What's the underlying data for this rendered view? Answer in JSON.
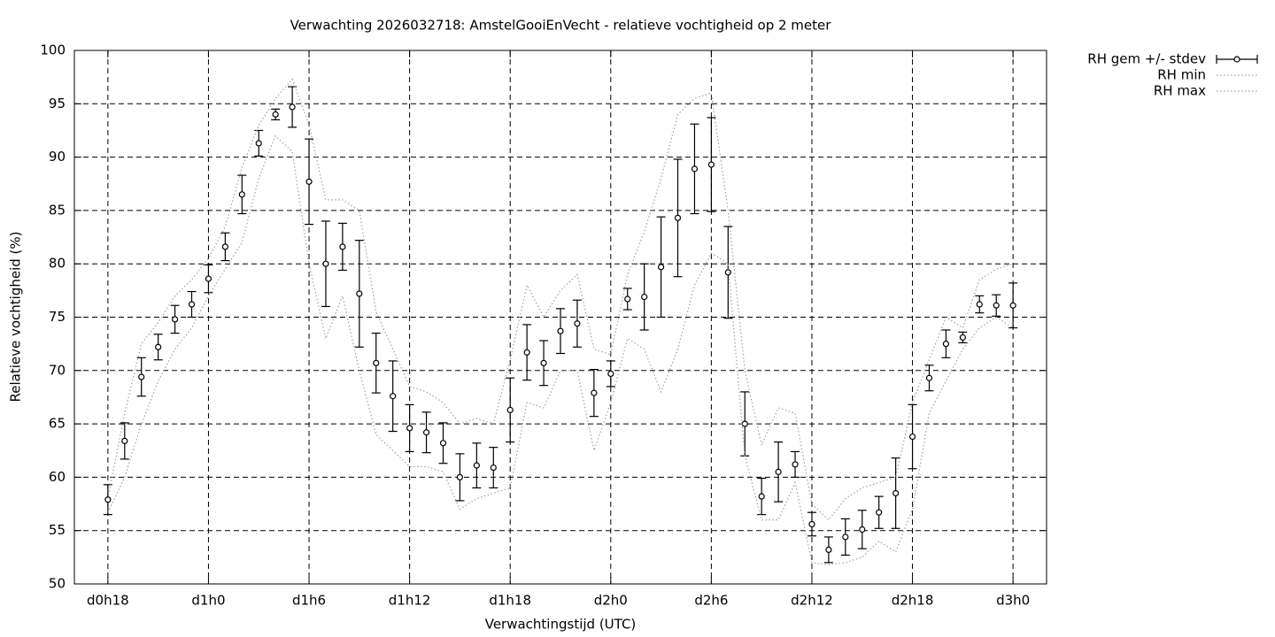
{
  "chart_data": {
    "type": "errorbar",
    "title": "Verwachting 2026032718: AmstelGooiEnVecht - relatieve vochtigheid op 2 meter",
    "xlabel": "Verwachtingstijd (UTC)",
    "ylabel": "Relatieve vochtigheid (%)",
    "x": [
      18,
      19,
      20,
      21,
      22,
      23,
      24,
      25,
      26,
      27,
      28,
      29,
      30,
      31,
      32,
      33,
      34,
      35,
      36,
      37,
      38,
      39,
      40,
      41,
      42,
      43,
      44,
      45,
      46,
      47,
      48,
      49,
      50,
      51,
      52,
      53,
      54,
      55,
      56,
      57,
      58,
      59,
      60,
      61,
      62,
      63,
      64,
      65,
      66,
      67,
      68,
      69,
      70,
      71,
      72
    ],
    "series": [
      {
        "name": "RH gem +/- stdev",
        "color": "#000000",
        "values": [
          57.9,
          63.4,
          69.4,
          72.2,
          74.8,
          76.2,
          78.6,
          81.6,
          86.5,
          91.3,
          94.0,
          94.7,
          87.7,
          80.0,
          81.6,
          77.2,
          70.7,
          67.6,
          64.6,
          64.2,
          63.2,
          60.0,
          61.1,
          60.9,
          66.3,
          71.7,
          70.7,
          73.7,
          74.4,
          67.9,
          69.7,
          76.7,
          76.9,
          79.7,
          84.3,
          88.9,
          89.3,
          79.2,
          65.0,
          58.2,
          60.5,
          61.2,
          55.6,
          53.2,
          54.4,
          55.1,
          56.7,
          58.5,
          63.8,
          69.3,
          72.5,
          73.1,
          76.2,
          76.1,
          76.1
        ],
        "errors": [
          1.4,
          1.7,
          1.8,
          1.2,
          1.3,
          1.2,
          1.3,
          1.3,
          1.8,
          1.2,
          0.5,
          1.9,
          4.0,
          4.0,
          2.2,
          5.0,
          2.8,
          3.3,
          2.2,
          1.9,
          1.9,
          2.2,
          2.1,
          1.9,
          3.0,
          2.6,
          2.1,
          2.1,
          2.2,
          2.2,
          1.2,
          1.0,
          3.1,
          4.7,
          5.5,
          4.2,
          4.4,
          4.3,
          3.0,
          1.7,
          2.8,
          1.2,
          1.1,
          1.2,
          1.7,
          1.8,
          1.5,
          3.3,
          3.0,
          1.2,
          1.3,
          0.5,
          0.8,
          1.0,
          2.1
        ]
      },
      {
        "name": "RH min",
        "color": "#a0a0a0",
        "values": [
          56.7,
          60,
          65,
          69,
          72,
          74,
          77,
          79.5,
          82,
          88,
          92,
          90.5,
          80,
          73,
          77,
          70,
          64,
          62.5,
          61,
          61,
          60.5,
          57,
          58,
          58.5,
          59,
          67,
          66.5,
          70,
          70,
          62.5,
          67,
          73,
          72,
          68,
          72,
          78,
          81,
          80,
          62,
          56,
          56,
          59.5,
          52,
          51.8,
          52,
          52.5,
          54,
          53,
          57,
          66,
          69,
          72,
          74,
          75,
          74
        ]
      },
      {
        "name": "RH max",
        "color": "#a0a0a0",
        "values": [
          58,
          66,
          72.5,
          74.5,
          77,
          78.5,
          80.5,
          83.5,
          89,
          93,
          95.5,
          97.3,
          93,
          86,
          86,
          85,
          75.5,
          72,
          68.5,
          68,
          67,
          65,
          65.5,
          65,
          71,
          78,
          75,
          77.5,
          79,
          72,
          71.5,
          79,
          83,
          88,
          94,
          95.5,
          96,
          85,
          70,
          63,
          66.5,
          66,
          57.5,
          56,
          58,
          59,
          59.5,
          60,
          67,
          71,
          75,
          74,
          78.5,
          79.5,
          80
        ]
      }
    ],
    "xlim": [
      16,
      74
    ],
    "xticks": [
      {
        "value": 18,
        "label": "d0h18"
      },
      {
        "value": 24,
        "label": "d1h0"
      },
      {
        "value": 30,
        "label": "d1h6"
      },
      {
        "value": 36,
        "label": "d1h12"
      },
      {
        "value": 42,
        "label": "d1h18"
      },
      {
        "value": 48,
        "label": "d2h0"
      },
      {
        "value": 54,
        "label": "d2h6"
      },
      {
        "value": 60,
        "label": "d2h12"
      },
      {
        "value": 66,
        "label": "d2h18"
      },
      {
        "value": 72,
        "label": "d3h0"
      }
    ],
    "ylim": [
      50,
      100
    ],
    "yticks": [
      50,
      55,
      60,
      65,
      70,
      75,
      80,
      85,
      90,
      95,
      100
    ],
    "grid": true,
    "legend": "outside-top-right"
  }
}
